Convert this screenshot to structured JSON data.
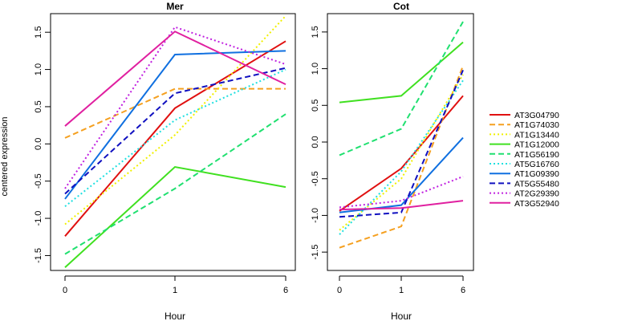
{
  "chart_data": {
    "type": "line",
    "ylabel": "centered expression",
    "xlabel": "Hour",
    "x_categories": [
      "0",
      "1",
      "6"
    ],
    "y_ticks": [
      "-1.5",
      "-1.0",
      "-0.5",
      "0.0",
      "0.5",
      "1.0",
      "1.5"
    ],
    "grid": false,
    "legend_position": "right",
    "series_styles": [
      {
        "name": "AT3G04790",
        "color": "#e01010",
        "dash": "solid"
      },
      {
        "name": "AT1G74030",
        "color": "#f5a020",
        "dash": "dashed"
      },
      {
        "name": "AT1G13440",
        "color": "#f0f000",
        "dash": "dotted"
      },
      {
        "name": "AT1G12000",
        "color": "#40e020",
        "dash": "solid"
      },
      {
        "name": "AT1G56190",
        "color": "#20e070",
        "dash": "dashed"
      },
      {
        "name": "AT5G16760",
        "color": "#20e0e0",
        "dash": "dotted"
      },
      {
        "name": "AT1G09390",
        "color": "#1070e0",
        "dash": "solid"
      },
      {
        "name": "AT5G55480",
        "color": "#1010c0",
        "dash": "dashed"
      },
      {
        "name": "AT2G29390",
        "color": "#c020e0",
        "dash": "dotted"
      },
      {
        "name": "AT3G52940",
        "color": "#e020a0",
        "dash": "solid"
      }
    ],
    "panels": [
      {
        "title": "Mer",
        "ylim": [
          -1.7,
          1.75
        ],
        "series": [
          {
            "name": "AT3G04790",
            "values": [
              -1.24,
              0.48,
              1.38
            ]
          },
          {
            "name": "AT1G74030",
            "values": [
              0.08,
              0.74,
              0.74
            ]
          },
          {
            "name": "AT1G13440",
            "values": [
              -1.08,
              0.12,
              1.72
            ]
          },
          {
            "name": "AT1G12000",
            "values": [
              -1.66,
              -0.31,
              -0.58
            ]
          },
          {
            "name": "AT1G56190",
            "values": [
              -1.48,
              -0.6,
              0.4
            ]
          },
          {
            "name": "AT5G16760",
            "values": [
              -0.84,
              0.32,
              1.0
            ]
          },
          {
            "name": "AT1G09390",
            "values": [
              -0.74,
              1.2,
              1.25
            ]
          },
          {
            "name": "AT5G55480",
            "values": [
              -0.67,
              0.68,
              1.02
            ]
          },
          {
            "name": "AT2G29390",
            "values": [
              -0.6,
              1.57,
              1.07
            ]
          },
          {
            "name": "AT3G52940",
            "values": [
              0.24,
              1.51,
              0.8
            ]
          }
        ]
      },
      {
        "title": "Cot",
        "ylim": [
          -1.75,
          1.75
        ],
        "series": [
          {
            "name": "AT3G04790",
            "values": [
              -0.94,
              -0.36,
              0.63
            ]
          },
          {
            "name": "AT1G74030",
            "values": [
              -1.44,
              -1.15,
              1.04
            ]
          },
          {
            "name": "AT1G13440",
            "values": [
              -1.2,
              -0.5,
              0.92
            ]
          },
          {
            "name": "AT1G12000",
            "values": [
              0.54,
              0.63,
              1.36
            ]
          },
          {
            "name": "AT1G56190",
            "values": [
              -0.18,
              0.18,
              1.64
            ]
          },
          {
            "name": "AT5G16760",
            "values": [
              -1.26,
              -0.4,
              0.84
            ]
          },
          {
            "name": "AT1G09390",
            "values": [
              -0.96,
              -0.86,
              0.06
            ]
          },
          {
            "name": "AT5G55480",
            "values": [
              -1.02,
              -0.96,
              0.98
            ]
          },
          {
            "name": "AT2G29390",
            "values": [
              -0.89,
              -0.8,
              -0.47
            ]
          },
          {
            "name": "AT3G52940",
            "values": [
              -0.92,
              -0.9,
              -0.8
            ]
          }
        ]
      }
    ]
  }
}
